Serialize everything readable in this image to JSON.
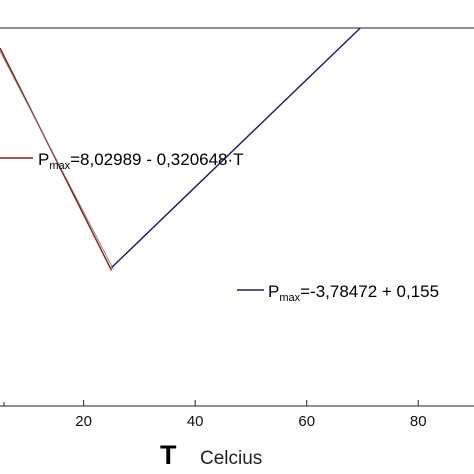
{
  "chart_data": {
    "type": "line",
    "xlabel_symbol": "T",
    "xlabel_unit": "Celcius",
    "x_ticks": [
      20,
      40,
      60,
      80
    ],
    "xlim": [
      5,
      90
    ],
    "ylim": [
      -3.9,
      7.0
    ],
    "series": [
      {
        "color": "#8b1a1a",
        "equation_prefix": "P",
        "equation_sub": "max",
        "equation_rest": "=8,02989 - 0,320648·T",
        "x": [
          5,
          25
        ],
        "y": [
          6.42,
          0.01
        ]
      },
      {
        "color": "#1a1a6e",
        "equation_prefix": "P",
        "equation_sub": "max",
        "equation_rest": "=-3,78472 + 0,155",
        "x": [
          25,
          90
        ],
        "y": [
          0.09,
          10.16
        ]
      }
    ]
  }
}
